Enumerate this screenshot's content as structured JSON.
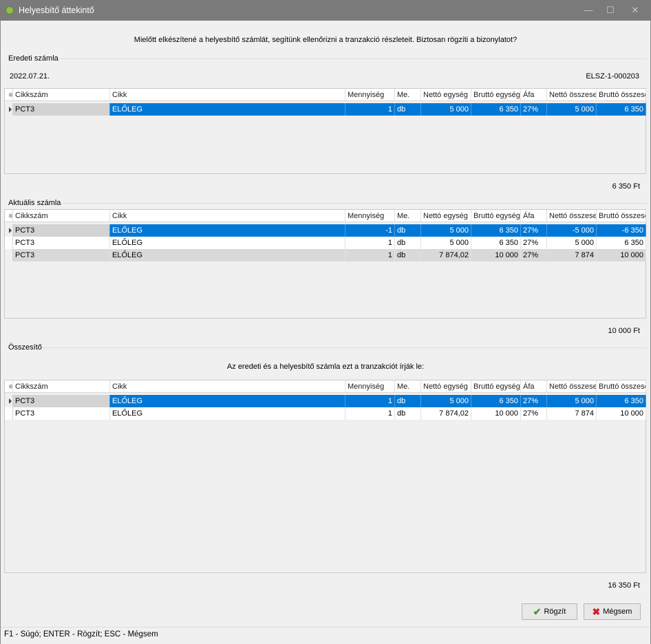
{
  "window": {
    "title": "Helyesbítő áttekintő",
    "min_glyph": "—",
    "max_glyph": "☐",
    "close_glyph": "✕"
  },
  "intro": "Mielőtt elkészítené a helyesbítő számlát, segítünk ellenőrizni a tranzakció részleteit. Biztosan rögzíti a bizonylatot?",
  "columns": [
    "Cikkszám",
    "Cikk",
    "Mennyiség",
    "Me.",
    "Nettó egység",
    "Bruttó egység",
    "Áfa",
    "Nettó összesen",
    "Bruttó összesen"
  ],
  "original": {
    "label": "Eredeti számla",
    "date": "2022.07.21.",
    "doc_number": "ELSZ-1-000203",
    "rows": [
      [
        "PCT3",
        "ELŐLEG",
        "1",
        "db",
        "5 000",
        "6 350",
        "27%",
        "5 000",
        "6 350"
      ]
    ],
    "total": "6 350 Ft"
  },
  "current": {
    "label": "Aktuális számla",
    "rows": [
      [
        "PCT3",
        "ELŐLEG",
        "-1",
        "db",
        "5 000",
        "6 350",
        "27%",
        "-5 000",
        "-6 350"
      ],
      [
        "PCT3",
        "ELŐLEG",
        "1",
        "db",
        "5 000",
        "6 350",
        "27%",
        "5 000",
        "6 350"
      ],
      [
        "PCT3",
        "ELŐLEG",
        "1",
        "db",
        "7 874,02",
        "10 000",
        "27%",
        "7 874",
        "10 000"
      ]
    ],
    "total": "10 000 Ft"
  },
  "summary": {
    "label": "Összesítő",
    "caption": "Az eredeti és a helyesbítő számla ezt a tranzakciót írják le:",
    "rows": [
      [
        "PCT3",
        "ELŐLEG",
        "1",
        "db",
        "5 000",
        "6 350",
        "27%",
        "5 000",
        "6 350"
      ],
      [
        "PCT3",
        "ELŐLEG",
        "1",
        "db",
        "7 874,02",
        "10 000",
        "27%",
        "7 874",
        "10 000"
      ]
    ],
    "total": "16 350 Ft"
  },
  "buttons": {
    "save": "Rögzít",
    "cancel": "Mégsem"
  },
  "status": "F1 - Súgó; ENTER - Rögzít; ESC - Mégsem",
  "colors": {
    "selection": "#0078d7",
    "save_icon": "#3a9a2a",
    "cancel_icon": "#d0202a"
  }
}
